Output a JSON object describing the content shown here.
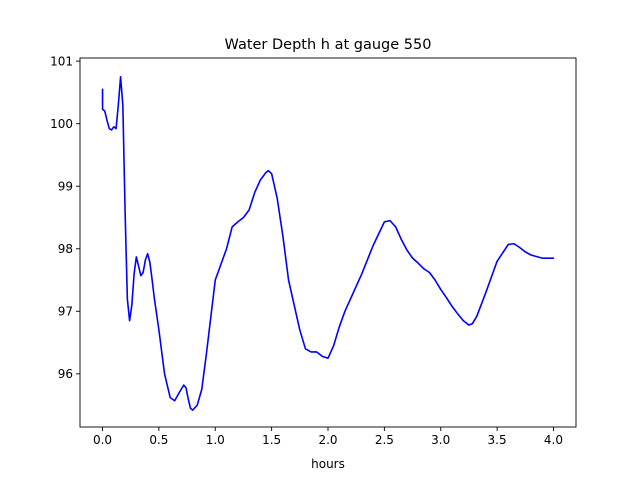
{
  "chart_data": {
    "type": "line",
    "title": "Water Depth h at gauge 550",
    "xlabel": "hours",
    "ylabel": "",
    "xlim": [
      -0.2,
      4.2
    ],
    "ylim": [
      95.15,
      101.05
    ],
    "xticks": [
      0.0,
      0.5,
      1.0,
      1.5,
      2.0,
      2.5,
      3.0,
      3.5,
      4.0
    ],
    "xtick_labels": [
      "0.0",
      "0.5",
      "1.0",
      "1.5",
      "2.0",
      "2.5",
      "3.0",
      "3.5",
      "4.0"
    ],
    "yticks": [
      96,
      97,
      98,
      99,
      100,
      101
    ],
    "ytick_labels": [
      "96",
      "97",
      "98",
      "99",
      "100",
      "101"
    ],
    "grid": false,
    "series": [
      {
        "color": "#0000ff",
        "x": [
          0.0,
          0.0,
          0.02,
          0.04,
          0.06,
          0.08,
          0.1,
          0.12,
          0.14,
          0.16,
          0.18,
          0.2,
          0.22,
          0.24,
          0.26,
          0.28,
          0.3,
          0.32,
          0.34,
          0.36,
          0.38,
          0.4,
          0.42,
          0.44,
          0.46,
          0.48,
          0.5,
          0.55,
          0.6,
          0.64,
          0.68,
          0.72,
          0.74,
          0.76,
          0.78,
          0.8,
          0.84,
          0.88,
          0.92,
          0.96,
          1.0,
          1.05,
          1.1,
          1.15,
          1.2,
          1.25,
          1.3,
          1.35,
          1.4,
          1.45,
          1.47,
          1.5,
          1.55,
          1.6,
          1.65,
          1.7,
          1.75,
          1.8,
          1.85,
          1.9,
          1.95,
          2.0,
          2.05,
          2.1,
          2.15,
          2.2,
          2.3,
          2.4,
          2.5,
          2.55,
          2.6,
          2.65,
          2.7,
          2.75,
          2.8,
          2.85,
          2.9,
          2.95,
          3.0,
          3.05,
          3.1,
          3.15,
          3.2,
          3.25,
          3.28,
          3.32,
          3.4,
          3.5,
          3.6,
          3.65,
          3.7,
          3.75,
          3.8,
          3.9,
          4.0
        ],
        "y": [
          100.55,
          100.23,
          100.2,
          100.05,
          99.92,
          99.9,
          99.95,
          99.92,
          100.3,
          100.75,
          100.3,
          98.6,
          97.2,
          96.85,
          97.1,
          97.6,
          97.87,
          97.72,
          97.57,
          97.62,
          97.82,
          97.92,
          97.78,
          97.5,
          97.2,
          96.95,
          96.7,
          96.0,
          95.62,
          95.57,
          95.7,
          95.82,
          95.78,
          95.6,
          95.45,
          95.42,
          95.5,
          95.75,
          96.3,
          96.9,
          97.5,
          97.75,
          98.0,
          98.35,
          98.43,
          98.5,
          98.62,
          98.9,
          99.1,
          99.22,
          99.25,
          99.2,
          98.8,
          98.2,
          97.5,
          97.1,
          96.7,
          96.4,
          96.35,
          96.35,
          96.28,
          96.25,
          96.45,
          96.75,
          97.0,
          97.2,
          97.6,
          98.05,
          98.43,
          98.45,
          98.35,
          98.15,
          97.98,
          97.85,
          97.77,
          97.68,
          97.62,
          97.5,
          97.35,
          97.22,
          97.08,
          96.96,
          96.85,
          96.78,
          96.8,
          96.92,
          97.3,
          97.8,
          98.07,
          98.08,
          98.02,
          97.95,
          97.9,
          97.85,
          97.85
        ]
      }
    ]
  }
}
